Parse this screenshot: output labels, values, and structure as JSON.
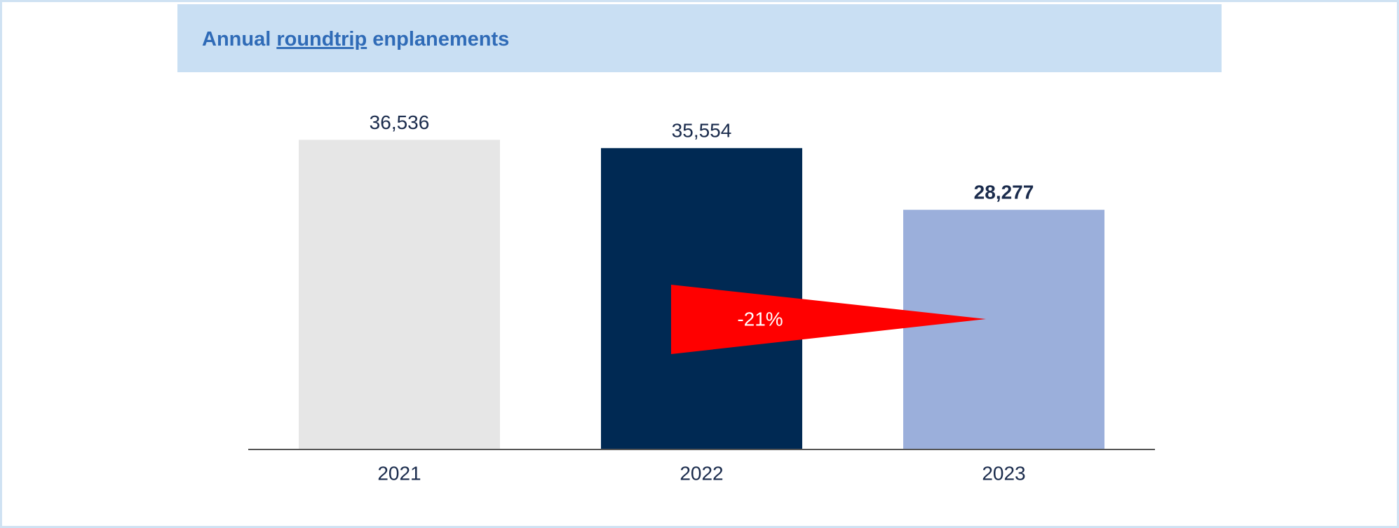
{
  "chart_data": {
    "type": "bar",
    "title": [
      "Annual",
      "roundtrip",
      "enplanements"
    ],
    "categories": [
      "2021",
      "2022",
      "2023"
    ],
    "values": [
      36536,
      35554,
      28277
    ],
    "value_labels": [
      "36,536",
      "35,554",
      "28,277"
    ],
    "colors": [
      "#e6e6e6",
      "#002953",
      "#9bafdb"
    ],
    "ylim": [
      0,
      40000
    ],
    "annotation": "-21%"
  }
}
